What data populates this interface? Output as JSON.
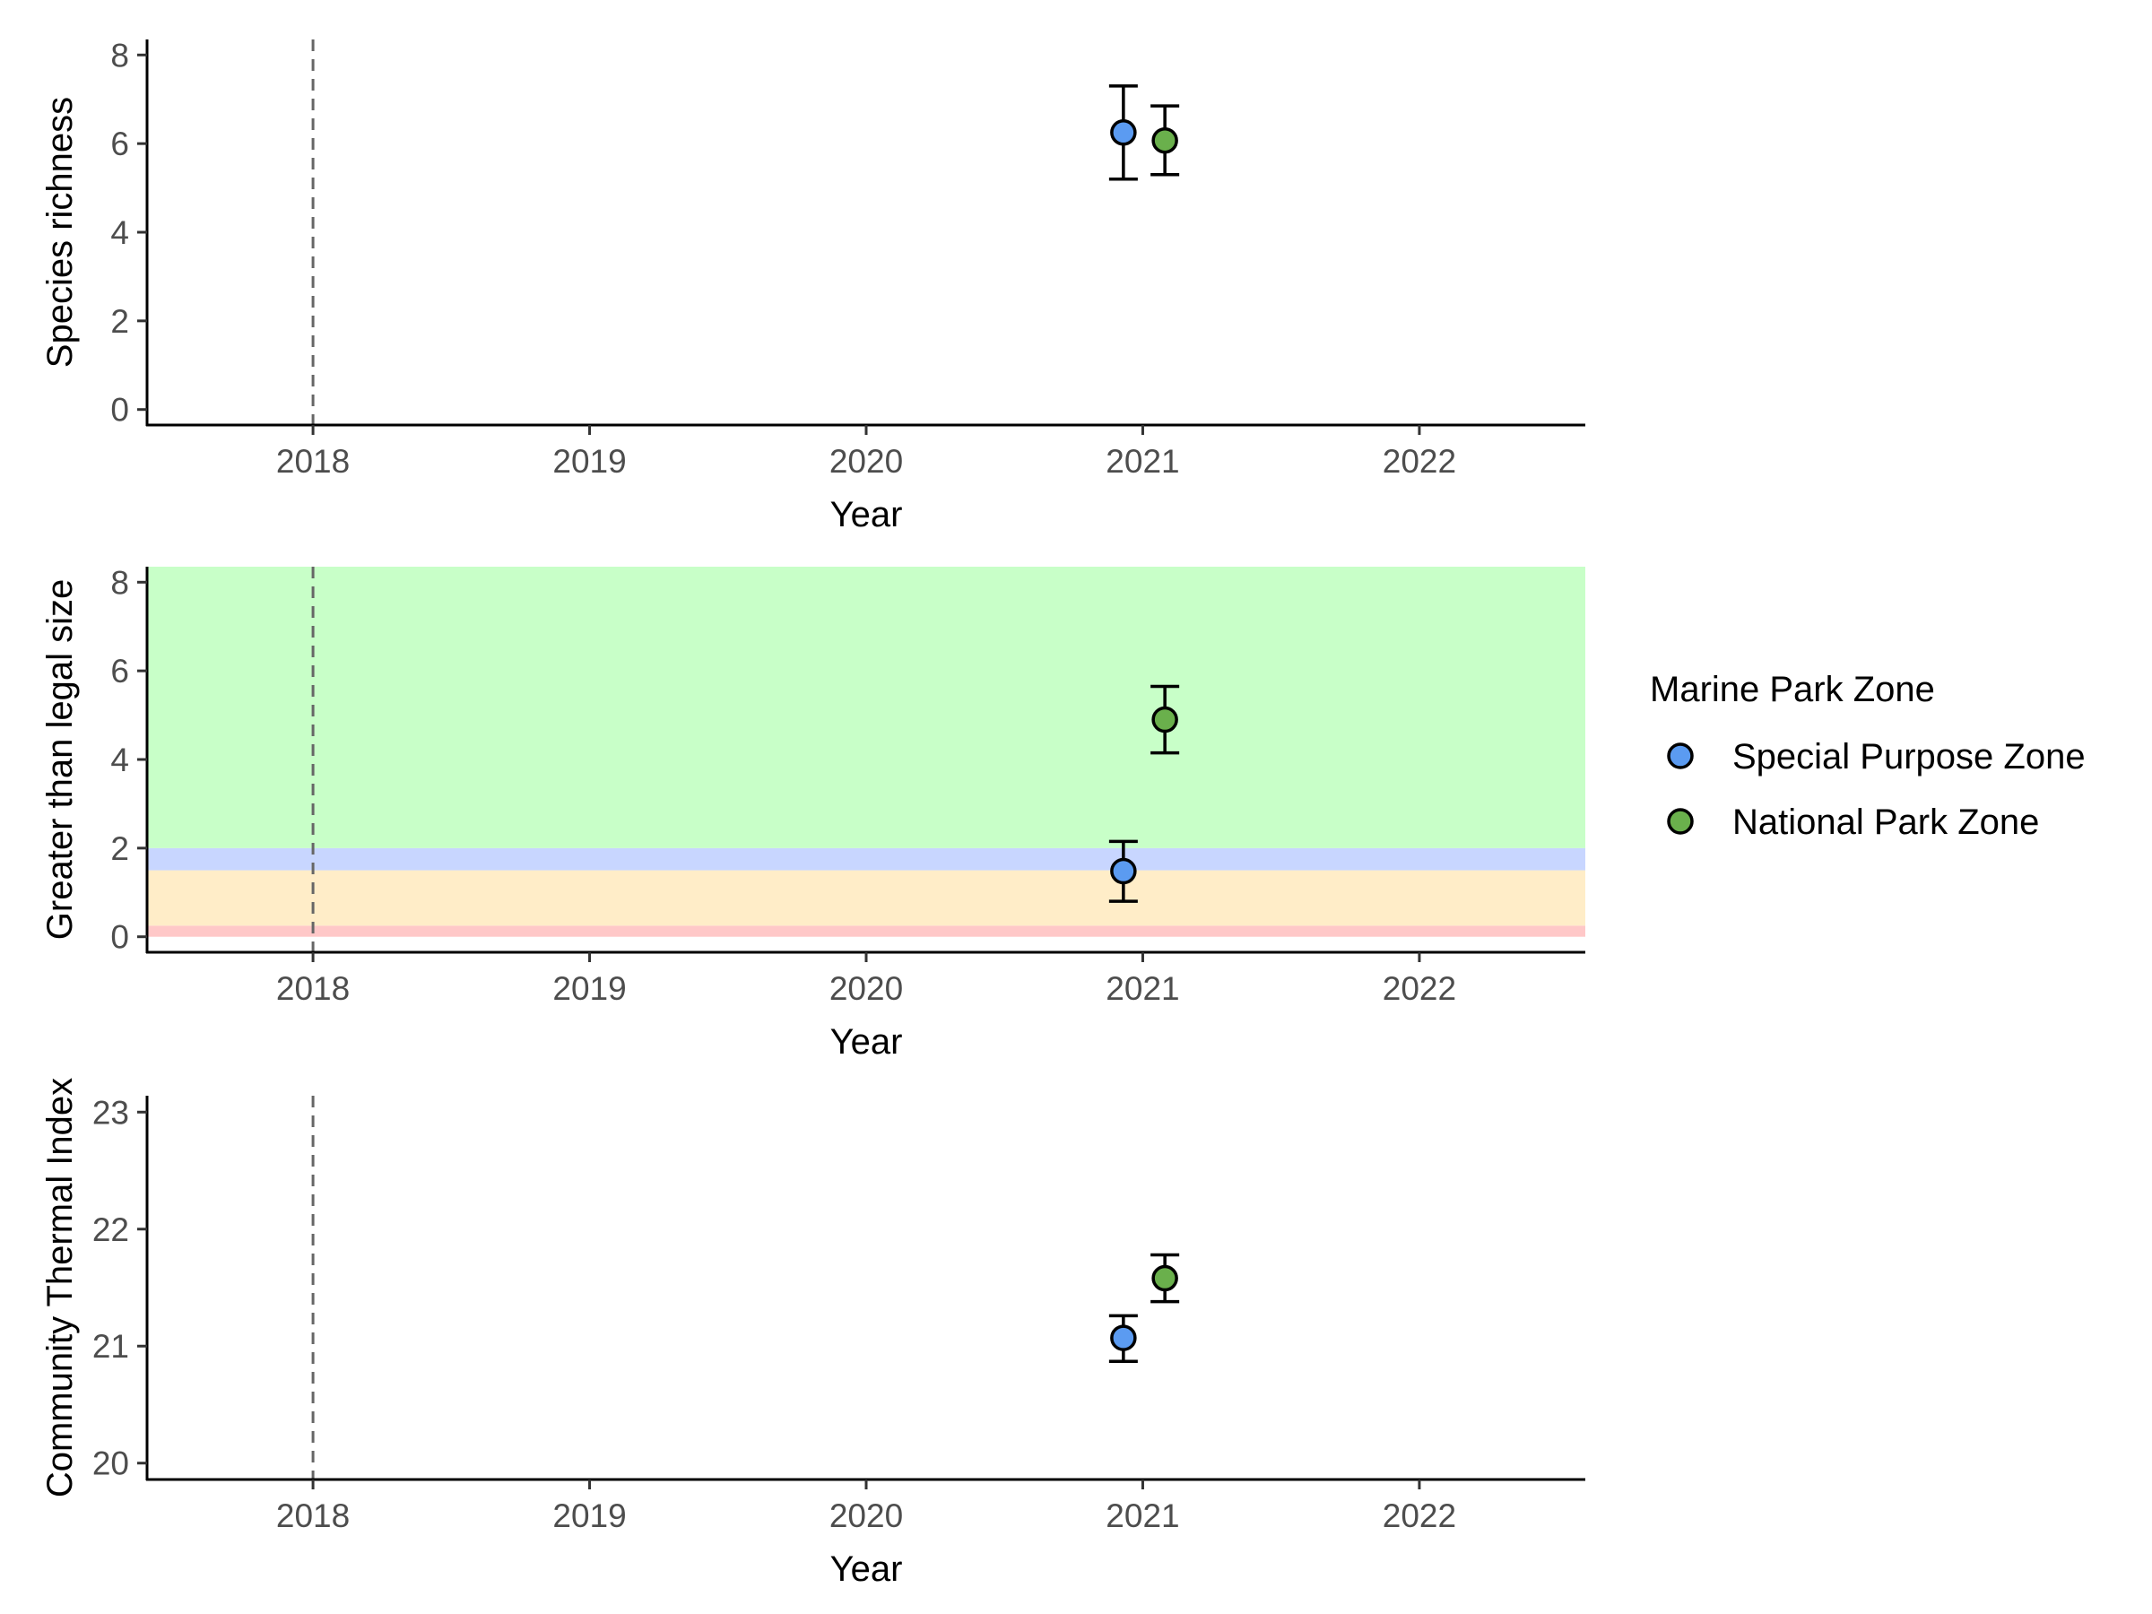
{
  "legend": {
    "title": "Marine Park Zone",
    "items": [
      {
        "label": "Special Purpose Zone",
        "color": "#5b9bf1"
      },
      {
        "label": "National Park Zone",
        "color": "#6ab04c"
      }
    ]
  },
  "chart_data": [
    {
      "type": "scatter",
      "xlabel": "Year",
      "ylabel": "Species richness",
      "xlim": [
        2017.4,
        2022.6
      ],
      "ylim": [
        -0.35,
        8.35
      ],
      "xticks": [
        2018,
        2019,
        2020,
        2021,
        2022
      ],
      "yticks": [
        0,
        2,
        4,
        6,
        8
      ],
      "vline_x": 2018,
      "series": [
        {
          "name": "Special Purpose Zone",
          "color": "#5b9bf1",
          "x": [
            2020.93
          ],
          "y": [
            6.25
          ],
          "ymin": [
            5.2
          ],
          "ymax": [
            7.3
          ]
        },
        {
          "name": "National Park Zone",
          "color": "#6ab04c",
          "x": [
            2021.08
          ],
          "y": [
            6.07
          ],
          "ymin": [
            5.3
          ],
          "ymax": [
            6.85
          ]
        }
      ]
    },
    {
      "type": "scatter",
      "xlabel": "Year",
      "ylabel": "Greater than legal size",
      "xlim": [
        2017.4,
        2022.6
      ],
      "ylim": [
        -0.35,
        8.35
      ],
      "xticks": [
        2018,
        2019,
        2020,
        2021,
        2022
      ],
      "yticks": [
        0,
        2,
        4,
        6,
        8
      ],
      "vline_x": 2018,
      "bands": [
        {
          "ymin": 0,
          "ymax": 0.25,
          "color": "#ffc8c8"
        },
        {
          "ymin": 0.25,
          "ymax": 1.5,
          "color": "#ffedc8"
        },
        {
          "ymin": 1.5,
          "ymax": 2.0,
          "color": "#c8d6ff"
        },
        {
          "ymin": 2.0,
          "ymax": 8.35,
          "color": "#c8ffc8"
        }
      ],
      "series": [
        {
          "name": "Special Purpose Zone",
          "color": "#5b9bf1",
          "x": [
            2020.93
          ],
          "y": [
            1.48
          ],
          "ymin": [
            0.8
          ],
          "ymax": [
            2.15
          ]
        },
        {
          "name": "National Park Zone",
          "color": "#6ab04c",
          "x": [
            2021.08
          ],
          "y": [
            4.9
          ],
          "ymin": [
            4.15
          ],
          "ymax": [
            5.65
          ]
        }
      ]
    },
    {
      "type": "scatter",
      "xlabel": "Year",
      "ylabel": "Community Thermal Index",
      "xlim": [
        2017.4,
        2022.6
      ],
      "ylim": [
        19.86,
        23.14
      ],
      "xticks": [
        2018,
        2019,
        2020,
        2021,
        2022
      ],
      "yticks": [
        20,
        21,
        22,
        23
      ],
      "vline_x": 2018,
      "series": [
        {
          "name": "Special Purpose Zone",
          "color": "#5b9bf1",
          "x": [
            2020.93
          ],
          "y": [
            21.07
          ],
          "ymin": [
            20.87
          ],
          "ymax": [
            21.26
          ]
        },
        {
          "name": "National Park Zone",
          "color": "#6ab04c",
          "x": [
            2021.08
          ],
          "y": [
            21.58
          ],
          "ymin": [
            21.38
          ],
          "ymax": [
            21.78
          ]
        }
      ]
    }
  ]
}
